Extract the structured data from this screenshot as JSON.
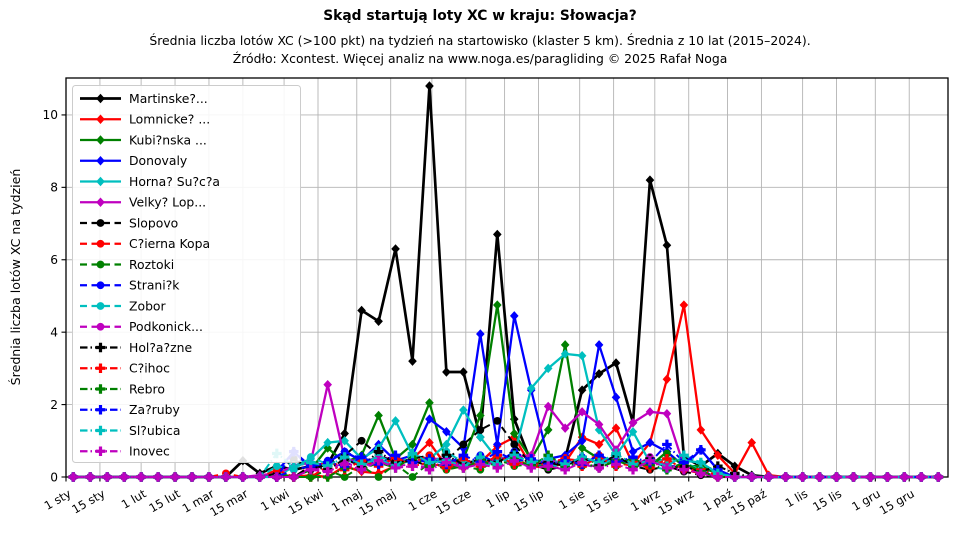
{
  "chart_data": {
    "type": "line",
    "title": "Skąd startują loty XC w kraju: Słowacja?",
    "subtitle": "Średnia liczba lotów XC (>100 pkt) na tydzień na startowisko (klaster 5 km). Średnia z 10 lat (2015–2024).",
    "source": "Źródło: Xcontest. Więcej analiz na www.noga.es/paragliding © 2025 Rafał Noga",
    "ylabel": "Średnia liczba lotów XC na tydzień",
    "ylim": [
      0,
      11.02
    ],
    "yticks": [
      0,
      2,
      4,
      6,
      8,
      10
    ],
    "x_unit": "day_of_year",
    "x_range": [
      1,
      365
    ],
    "grid": true,
    "legend_position": "upper-left",
    "xtick_days": [
      1,
      15,
      32,
      46,
      60,
      74,
      91,
      105,
      121,
      135,
      152,
      166,
      182,
      196,
      213,
      227,
      244,
      258,
      274,
      288,
      305,
      319,
      335,
      349
    ],
    "xtick_labels": [
      "1 sty",
      "15 sty",
      "1 lut",
      "15 lut",
      "1 mar",
      "15 mar",
      "1 kwi",
      "15 kwi",
      "1 maj",
      "15 maj",
      "1 cze",
      "15 cze",
      "1 lip",
      "15 lip",
      "1 sie",
      "15 sie",
      "1 wrz",
      "15 wrz",
      "1 paź",
      "15 paź",
      "1 lis",
      "15 lis",
      "1 gru",
      "15 gru"
    ],
    "x_days": [
      4,
      11,
      18,
      25,
      32,
      39,
      46,
      53,
      60,
      67,
      74,
      81,
      88,
      95,
      102,
      109,
      116,
      123,
      130,
      137,
      144,
      151,
      158,
      165,
      172,
      179,
      186,
      193,
      200,
      207,
      214,
      221,
      228,
      235,
      242,
      249,
      256,
      263,
      270,
      277,
      284,
      291,
      298,
      305,
      312,
      319,
      326,
      333,
      340,
      347,
      354,
      361
    ],
    "series": [
      {
        "name": "Martinske?...",
        "color": "#000000",
        "linestyle": "solid",
        "marker": "diamond",
        "values": [
          0,
          0,
          0,
          0,
          0,
          0,
          0,
          0,
          0,
          0,
          0.45,
          0.1,
          0.3,
          0.2,
          0.3,
          0.35,
          1.2,
          4.6,
          4.3,
          6.3,
          3.2,
          10.8,
          2.9,
          2.9,
          1.1,
          6.7,
          1.6,
          0.4,
          0.3,
          0.5,
          2.4,
          2.85,
          3.15,
          1.5,
          8.2,
          6.4,
          0.55,
          0.3,
          0.65,
          0.3,
          0.05,
          0,
          0,
          0,
          0,
          0,
          0,
          0,
          0,
          0,
          0,
          0
        ]
      },
      {
        "name": "Lomnicke? ...",
        "color": "#ff0000",
        "linestyle": "solid",
        "marker": "diamond",
        "values": [
          0,
          0,
          0,
          0,
          0,
          0,
          0,
          0,
          0,
          0,
          0,
          0,
          0.1,
          0,
          0.05,
          0,
          0.3,
          0.15,
          0.1,
          0.3,
          0.5,
          0.95,
          0.3,
          0.25,
          0.4,
          0.85,
          1.1,
          0.3,
          0.25,
          0.4,
          1.1,
          0.9,
          1.35,
          0.35,
          0.95,
          2.7,
          4.75,
          1.3,
          0.6,
          0.1,
          0.95,
          0.05,
          0,
          0,
          0,
          0,
          0,
          0,
          0,
          0,
          0,
          0
        ]
      },
      {
        "name": "Kubi?nska ...",
        "color": "#008000",
        "linestyle": "solid",
        "marker": "diamond",
        "values": [
          0,
          0,
          0,
          0,
          0,
          0,
          0,
          0,
          0,
          0,
          0,
          0,
          0.1,
          0,
          0.2,
          0.8,
          0.4,
          0.6,
          1.7,
          0.5,
          0.9,
          2.05,
          0.4,
          0.5,
          1.7,
          4.75,
          1.2,
          0.5,
          1.3,
          3.65,
          0.8,
          0.5,
          0.4,
          0.5,
          0.3,
          0.7,
          0.3,
          0.3,
          0.1,
          0,
          0,
          0,
          0,
          0,
          0,
          0,
          0,
          0,
          0,
          0,
          0,
          0
        ]
      },
      {
        "name": "Donovaly",
        "color": "#0000ff",
        "linestyle": "solid",
        "marker": "diamond",
        "values": [
          0,
          0,
          0,
          0,
          0,
          0,
          0,
          0,
          0,
          0,
          0,
          0,
          0.15,
          0.7,
          0.25,
          0.4,
          0.7,
          0.45,
          0.9,
          0.45,
          0.6,
          1.6,
          1.25,
          0.8,
          3.95,
          0.9,
          4.45,
          2.4,
          0.5,
          0.6,
          1.0,
          3.65,
          2.2,
          0.7,
          0.95,
          0.7,
          0.3,
          0.75,
          0.2,
          0,
          0,
          0,
          0,
          0,
          0,
          0,
          0,
          0,
          0,
          0,
          0,
          0
        ]
      },
      {
        "name": "Horna? Su?c?a",
        "color": "#00bfbf",
        "linestyle": "solid",
        "marker": "diamond",
        "values": [
          0,
          0,
          0,
          0,
          0,
          0,
          0,
          0,
          0,
          0,
          0,
          0,
          0,
          0.3,
          0.5,
          0.95,
          1.0,
          0.5,
          0.8,
          1.55,
          0.6,
          0.5,
          0.9,
          1.85,
          1.1,
          0.5,
          0.6,
          2.45,
          3.0,
          3.4,
          3.35,
          1.3,
          0.6,
          1.25,
          0.4,
          0.5,
          0.45,
          0.4,
          0.1,
          0,
          0,
          0,
          0,
          0,
          0,
          0,
          0,
          0,
          0,
          0,
          0,
          0
        ]
      },
      {
        "name": "Velky? Lop...",
        "color": "#bf00bf",
        "linestyle": "solid",
        "marker": "diamond",
        "values": [
          0,
          0,
          0,
          0,
          0,
          0,
          0,
          0,
          0,
          0,
          0,
          0.05,
          0.1,
          0.3,
          0.4,
          2.55,
          0.5,
          0.4,
          0.55,
          0.5,
          0.4,
          0.5,
          0.5,
          0.35,
          0.4,
          0.5,
          0.55,
          0.6,
          1.95,
          1.35,
          1.8,
          1.45,
          0.75,
          1.5,
          1.8,
          1.75,
          0.3,
          0.15,
          0,
          0,
          0,
          0,
          0,
          0,
          0,
          0,
          0,
          0,
          0,
          0,
          0,
          0
        ]
      },
      {
        "name": "Slopovo",
        "color": "#000000",
        "linestyle": "dashed",
        "marker": "circle",
        "values": [
          0,
          0,
          0,
          0,
          0,
          0,
          0,
          0,
          0,
          0,
          0,
          0,
          0.1,
          0.5,
          0.2,
          0.35,
          0.6,
          1.0,
          0.6,
          0.4,
          0.5,
          0.6,
          0.45,
          0.9,
          1.3,
          1.55,
          0.9,
          0.35,
          0.2,
          0.3,
          0.5,
          0.4,
          0.5,
          0.3,
          0.2,
          0.3,
          0.15,
          0.05,
          0,
          0,
          0,
          0,
          0,
          0,
          0,
          0,
          0,
          0,
          0,
          0,
          0,
          0
        ]
      },
      {
        "name": "C?ierna Kopa",
        "color": "#ff0000",
        "linestyle": "dashed",
        "marker": "circle",
        "values": [
          0,
          0,
          0,
          0,
          0,
          0,
          0,
          0,
          0,
          0.1,
          0,
          0,
          0.2,
          0,
          0.3,
          0.4,
          0.3,
          0.5,
          0.35,
          0.5,
          0.4,
          0.6,
          0.35,
          0.5,
          0.3,
          0.45,
          0.55,
          0.3,
          0.4,
          0.5,
          0.45,
          0.6,
          0.4,
          0.3,
          0.45,
          0.35,
          0.2,
          0.1,
          0,
          0,
          0,
          0,
          0,
          0,
          0,
          0,
          0,
          0,
          0,
          0,
          0,
          0
        ]
      },
      {
        "name": "Roztoki",
        "color": "#008000",
        "linestyle": "dashed",
        "marker": "circle",
        "values": [
          0,
          0,
          0,
          0,
          0,
          0,
          0,
          0,
          0,
          0,
          0,
          0,
          0,
          0,
          0,
          0.2,
          0,
          0.3,
          0,
          0.35,
          0,
          0.4,
          0.2,
          0.3,
          0.2,
          0.5,
          0.3,
          0.35,
          0.25,
          0.45,
          0.3,
          0.5,
          0.3,
          0.5,
          0.3,
          0.65,
          0.3,
          0.25,
          0.1,
          0,
          0,
          0,
          0,
          0,
          0,
          0,
          0,
          0,
          0,
          0,
          0,
          0
        ]
      },
      {
        "name": "Strani?k",
        "color": "#0000ff",
        "linestyle": "dashed",
        "marker": "circle",
        "values": [
          0,
          0,
          0,
          0,
          0,
          0,
          0,
          0,
          0,
          0,
          0,
          0,
          0,
          0.2,
          0.3,
          0.45,
          0.7,
          0.5,
          0.45,
          0.3,
          0.5,
          0.4,
          0.55,
          0.35,
          0.6,
          0.4,
          0.7,
          0.45,
          0.45,
          0.3,
          0.55,
          0.4,
          0.5,
          0.35,
          0.4,
          0.3,
          0.3,
          0.15,
          0.1,
          0,
          0,
          0,
          0,
          0,
          0,
          0,
          0,
          0,
          0,
          0,
          0,
          0
        ]
      },
      {
        "name": "Zobor",
        "color": "#00bfbf",
        "linestyle": "dashed",
        "marker": "circle",
        "values": [
          0,
          0,
          0,
          0,
          0,
          0,
          0,
          0,
          0,
          0,
          0,
          0,
          0.3,
          0.2,
          0.55,
          0.35,
          0.5,
          0.3,
          0.6,
          0.35,
          0.45,
          0.3,
          0.7,
          0.4,
          0.4,
          0.3,
          0.5,
          0.35,
          0.35,
          0.25,
          0.45,
          0.3,
          0.55,
          0.3,
          0.3,
          0.2,
          0.4,
          0.2,
          0.1,
          0,
          0,
          0,
          0,
          0,
          0,
          0,
          0,
          0,
          0,
          0,
          0,
          0
        ]
      },
      {
        "name": "Podkonick...",
        "color": "#bf00bf",
        "linestyle": "dashed",
        "marker": "circle",
        "values": [
          0,
          0,
          0,
          0,
          0,
          0,
          0,
          0,
          0,
          0,
          0,
          0,
          0,
          0,
          0.25,
          0.2,
          0.4,
          0.25,
          0.5,
          0.3,
          0.35,
          0.25,
          0.45,
          0.3,
          0.5,
          0.3,
          0.4,
          0.3,
          0.5,
          0.35,
          0.35,
          0.25,
          0.45,
          0.3,
          0.55,
          0.3,
          0.25,
          0.1,
          0,
          0,
          0,
          0,
          0,
          0,
          0,
          0,
          0,
          0,
          0,
          0,
          0,
          0
        ]
      },
      {
        "name": "Hol?a?zne",
        "color": "#000000",
        "linestyle": "dashdot",
        "marker": "plus",
        "values": [
          0,
          0,
          0,
          0,
          0,
          0,
          0,
          0,
          0,
          0,
          0,
          0,
          0,
          0,
          0.3,
          0.2,
          0.5,
          0.3,
          0.7,
          0.4,
          0.45,
          0.3,
          0.6,
          0.35,
          0.5,
          0.4,
          0.65,
          0.35,
          0.4,
          0.3,
          0.55,
          0.35,
          0.6,
          0.3,
          0.5,
          0.25,
          0.3,
          0.15,
          0.3,
          0.1,
          0,
          0,
          0,
          0,
          0,
          0,
          0,
          0,
          0,
          0,
          0,
          0
        ]
      },
      {
        "name": "C?ihoc",
        "color": "#ff0000",
        "linestyle": "dashdot",
        "marker": "plus",
        "values": [
          0,
          0,
          0,
          0,
          0,
          0,
          0,
          0,
          0,
          0,
          0,
          0,
          0,
          0,
          0,
          0.3,
          0.2,
          0.45,
          0.3,
          0.55,
          0.3,
          0.4,
          0.25,
          0.5,
          0.3,
          0.6,
          0.35,
          0.45,
          0.3,
          0.5,
          0.3,
          0.55,
          0.3,
          0.4,
          0.25,
          0.5,
          0.2,
          0.2,
          0.05,
          0,
          0,
          0,
          0,
          0,
          0,
          0,
          0,
          0,
          0,
          0,
          0,
          0
        ]
      },
      {
        "name": "Rebro",
        "color": "#008000",
        "linestyle": "dashdot",
        "marker": "plus",
        "values": [
          0,
          0,
          0,
          0,
          0,
          0,
          0,
          0,
          0,
          0,
          0,
          0,
          0,
          0,
          0,
          0,
          0.25,
          0.2,
          0.4,
          0.25,
          0.55,
          0.3,
          0.35,
          0.25,
          0.45,
          0.3,
          0.5,
          0.3,
          0.6,
          0.3,
          0.4,
          0.25,
          0.45,
          0.3,
          0.35,
          0.2,
          0.4,
          0.15,
          0,
          0,
          0,
          0,
          0,
          0,
          0,
          0,
          0,
          0,
          0,
          0,
          0,
          0
        ]
      },
      {
        "name": "Za?ruby",
        "color": "#0000ff",
        "linestyle": "dashdot",
        "marker": "plus",
        "values": [
          0,
          0,
          0,
          0,
          0,
          0,
          0,
          0,
          0,
          0,
          0,
          0,
          0,
          0.7,
          0.3,
          0.4,
          0.3,
          0.55,
          0.35,
          0.6,
          0.4,
          0.5,
          0.35,
          0.6,
          0.4,
          0.7,
          0.45,
          0.5,
          0.35,
          0.45,
          0.35,
          0.6,
          0.4,
          0.55,
          0.4,
          0.9,
          0.4,
          0.75,
          0.2,
          0,
          0,
          0,
          0,
          0,
          0,
          0,
          0,
          0,
          0,
          0,
          0,
          0
        ]
      },
      {
        "name": "Sl?ubica",
        "color": "#00bfbf",
        "linestyle": "dashdot",
        "marker": "plus",
        "values": [
          0,
          0,
          0,
          0,
          0,
          0,
          0,
          0,
          0,
          0,
          0,
          0,
          0.65,
          0.3,
          0.4,
          0.3,
          0.55,
          0.35,
          0.5,
          0.3,
          0.65,
          0.4,
          0.45,
          0.3,
          0.55,
          0.35,
          0.6,
          0.4,
          0.5,
          0.35,
          0.55,
          0.4,
          0.65,
          0.35,
          0.45,
          0.3,
          0.6,
          0.4,
          0.1,
          0,
          0,
          0,
          0,
          0,
          0,
          0,
          0,
          0,
          0,
          0,
          0,
          0
        ]
      },
      {
        "name": "Inovec",
        "color": "#bf00bf",
        "linestyle": "dashdot",
        "marker": "plus",
        "values": [
          0,
          0,
          0,
          0,
          0,
          0,
          0,
          0,
          0,
          0,
          0,
          0,
          0,
          0,
          0.2,
          0.15,
          0.35,
          0.2,
          0.45,
          0.25,
          0.3,
          0.2,
          0.4,
          0.25,
          0.35,
          0.25,
          0.45,
          0.25,
          0.3,
          0.2,
          0.4,
          0.25,
          0.35,
          0.2,
          0.45,
          0.25,
          0.2,
          0.1,
          0,
          0,
          0,
          0,
          0,
          0,
          0,
          0,
          0,
          0,
          0,
          0,
          0,
          0
        ]
      }
    ],
    "colors": {
      "grid": "#b4b4b4",
      "frame": "#000000",
      "legend_border": "#cccccc"
    }
  }
}
